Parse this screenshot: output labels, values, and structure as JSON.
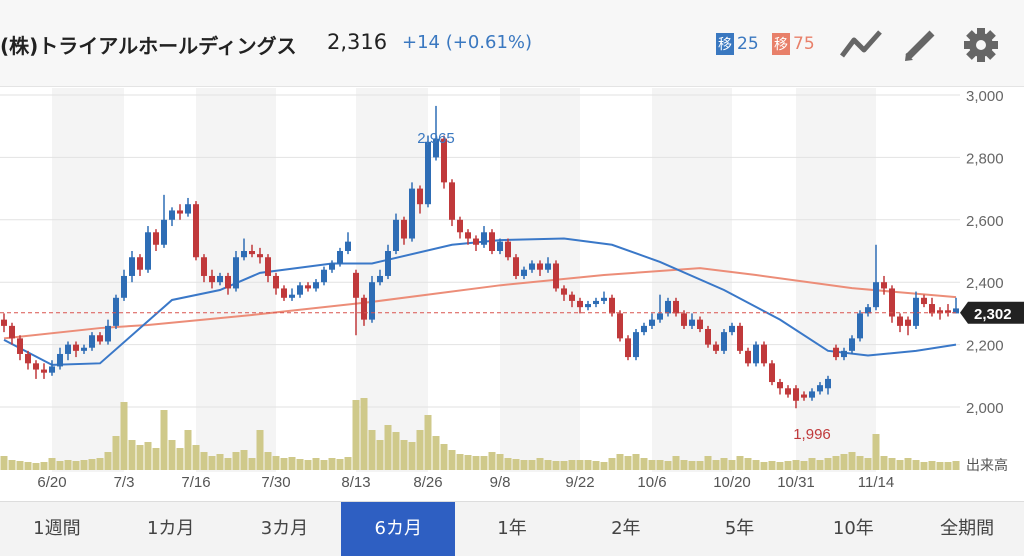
{
  "header": {
    "title": "(株)トライアルホールディングス",
    "price": "2,316",
    "change": "+14 (+0.61%)",
    "ma_short": {
      "badge": "移",
      "period": "25",
      "color": "#3a78c0"
    },
    "ma_long": {
      "badge": "移",
      "period": "75",
      "color": "#e8806a"
    },
    "icons": [
      "line-chart-icon",
      "pencil-icon",
      "gear-icon"
    ]
  },
  "tabs": [
    "1週間",
    "1カ月",
    "3カ月",
    "6カ月",
    "1年",
    "2年",
    "5年",
    "10年",
    "全期間"
  ],
  "selected_tab": 3,
  "chart_data": {
    "type": "candlestick",
    "ylim": [
      1900,
      3050
    ],
    "yticks": [
      {
        "v": 3000,
        "label": "3,000"
      },
      {
        "v": 2800,
        "label": "2,800"
      },
      {
        "v": 2600,
        "label": "2,600"
      },
      {
        "v": 2400,
        "label": "2,400"
      },
      {
        "v": 2200,
        "label": "2,200"
      },
      {
        "v": 2000,
        "label": "2,000"
      }
    ],
    "xticks": [
      {
        "i": 6,
        "label": "6/20"
      },
      {
        "i": 15,
        "label": "7/3"
      },
      {
        "i": 24,
        "label": "7/16"
      },
      {
        "i": 34,
        "label": "7/30"
      },
      {
        "i": 44,
        "label": "8/13"
      },
      {
        "i": 53,
        "label": "8/26"
      },
      {
        "i": 62,
        "label": "9/8"
      },
      {
        "i": 72,
        "label": "9/22"
      },
      {
        "i": 81,
        "label": "10/6"
      },
      {
        "i": 91,
        "label": "10/20"
      },
      {
        "i": 99,
        "label": "10/31"
      },
      {
        "i": 109,
        "label": "11/14"
      }
    ],
    "volume_label": "出来高",
    "current": {
      "value": 2302,
      "label": "2,302"
    },
    "high": {
      "i": 54,
      "value": 2965,
      "label": "2,965"
    },
    "low": {
      "i": 99,
      "value": 1996,
      "label": "1,996"
    },
    "colors": {
      "up": "#2e6db5",
      "down": "#c0393b",
      "volume": "#cfc98a",
      "ma25": "#3a78c8",
      "ma75": "#ec8d78"
    },
    "candles_ohlc": [
      [
        2280,
        2300,
        2240,
        2260
      ],
      [
        2260,
        2270,
        2200,
        2220
      ],
      [
        2220,
        2230,
        2150,
        2170
      ],
      [
        2170,
        2180,
        2120,
        2140
      ],
      [
        2140,
        2150,
        2090,
        2120
      ],
      [
        2120,
        2140,
        2090,
        2110
      ],
      [
        2110,
        2150,
        2100,
        2130
      ],
      [
        2130,
        2190,
        2120,
        2170
      ],
      [
        2170,
        2210,
        2150,
        2200
      ],
      [
        2200,
        2210,
        2160,
        2180
      ],
      [
        2180,
        2200,
        2170,
        2190
      ],
      [
        2190,
        2240,
        2180,
        2230
      ],
      [
        2230,
        2240,
        2200,
        2210
      ],
      [
        2210,
        2280,
        2200,
        2260
      ],
      [
        2260,
        2360,
        2250,
        2350
      ],
      [
        2350,
        2440,
        2340,
        2420
      ],
      [
        2420,
        2500,
        2400,
        2480
      ],
      [
        2480,
        2490,
        2420,
        2440
      ],
      [
        2440,
        2580,
        2430,
        2560
      ],
      [
        2560,
        2570,
        2500,
        2520
      ],
      [
        2520,
        2680,
        2510,
        2600
      ],
      [
        2600,
        2640,
        2580,
        2630
      ],
      [
        2630,
        2650,
        2600,
        2620
      ],
      [
        2620,
        2670,
        2610,
        2650
      ],
      [
        2650,
        2660,
        2470,
        2480
      ],
      [
        2480,
        2490,
        2400,
        2420
      ],
      [
        2420,
        2440,
        2380,
        2400
      ],
      [
        2400,
        2430,
        2390,
        2420
      ],
      [
        2420,
        2430,
        2360,
        2380
      ],
      [
        2380,
        2500,
        2370,
        2480
      ],
      [
        2480,
        2540,
        2470,
        2500
      ],
      [
        2500,
        2520,
        2480,
        2490
      ],
      [
        2490,
        2510,
        2460,
        2480
      ],
      [
        2480,
        2490,
        2400,
        2420
      ],
      [
        2420,
        2430,
        2360,
        2380
      ],
      [
        2380,
        2390,
        2340,
        2350
      ],
      [
        2350,
        2380,
        2340,
        2360
      ],
      [
        2360,
        2400,
        2350,
        2390
      ],
      [
        2390,
        2400,
        2370,
        2380
      ],
      [
        2380,
        2410,
        2370,
        2400
      ],
      [
        2400,
        2450,
        2390,
        2440
      ],
      [
        2440,
        2470,
        2430,
        2460
      ],
      [
        2460,
        2510,
        2450,
        2500
      ],
      [
        2500,
        2560,
        2490,
        2530
      ],
      [
        2430,
        2440,
        2230,
        2350
      ],
      [
        2350,
        2360,
        2260,
        2280
      ],
      [
        2280,
        2420,
        2270,
        2400
      ],
      [
        2400,
        2440,
        2390,
        2420
      ],
      [
        2420,
        2520,
        2410,
        2500
      ],
      [
        2500,
        2620,
        2490,
        2600
      ],
      [
        2600,
        2610,
        2520,
        2540
      ],
      [
        2540,
        2720,
        2530,
        2700
      ],
      [
        2700,
        2710,
        2620,
        2650
      ],
      [
        2650,
        2870,
        2640,
        2850
      ],
      [
        2800,
        2965,
        2790,
        2860
      ],
      [
        2860,
        2870,
        2700,
        2720
      ],
      [
        2720,
        2730,
        2580,
        2600
      ],
      [
        2600,
        2610,
        2540,
        2560
      ],
      [
        2560,
        2570,
        2520,
        2540
      ],
      [
        2540,
        2550,
        2500,
        2520
      ],
      [
        2520,
        2580,
        2510,
        2560
      ],
      [
        2560,
        2570,
        2490,
        2500
      ],
      [
        2500,
        2540,
        2490,
        2530
      ],
      [
        2530,
        2540,
        2470,
        2480
      ],
      [
        2480,
        2490,
        2410,
        2420
      ],
      [
        2420,
        2450,
        2410,
        2440
      ],
      [
        2440,
        2470,
        2430,
        2460
      ],
      [
        2460,
        2470,
        2420,
        2440
      ],
      [
        2440,
        2480,
        2430,
        2460
      ],
      [
        2460,
        2470,
        2370,
        2380
      ],
      [
        2380,
        2390,
        2340,
        2360
      ],
      [
        2360,
        2370,
        2320,
        2340
      ],
      [
        2340,
        2350,
        2300,
        2320
      ],
      [
        2320,
        2340,
        2310,
        2330
      ],
      [
        2330,
        2350,
        2320,
        2340
      ],
      [
        2340,
        2370,
        2330,
        2350
      ],
      [
        2350,
        2360,
        2290,
        2300
      ],
      [
        2300,
        2310,
        2210,
        2220
      ],
      [
        2220,
        2230,
        2150,
        2160
      ],
      [
        2160,
        2250,
        2150,
        2240
      ],
      [
        2240,
        2270,
        2230,
        2260
      ],
      [
        2260,
        2300,
        2250,
        2280
      ],
      [
        2280,
        2360,
        2270,
        2300
      ],
      [
        2300,
        2350,
        2290,
        2340
      ],
      [
        2340,
        2350,
        2290,
        2300
      ],
      [
        2300,
        2310,
        2250,
        2260
      ],
      [
        2260,
        2300,
        2250,
        2280
      ],
      [
        2280,
        2290,
        2240,
        2250
      ],
      [
        2250,
        2260,
        2190,
        2200
      ],
      [
        2200,
        2210,
        2170,
        2180
      ],
      [
        2180,
        2250,
        2170,
        2240
      ],
      [
        2240,
        2270,
        2230,
        2260
      ],
      [
        2260,
        2270,
        2170,
        2180
      ],
      [
        2180,
        2190,
        2130,
        2140
      ],
      [
        2140,
        2210,
        2130,
        2200
      ],
      [
        2200,
        2210,
        2130,
        2140
      ],
      [
        2140,
        2150,
        2070,
        2080
      ],
      [
        2080,
        2090,
        2040,
        2060
      ],
      [
        2060,
        2070,
        2030,
        2040
      ],
      [
        2060,
        2070,
        1996,
        2020
      ],
      [
        2040,
        2050,
        2020,
        2030
      ],
      [
        2030,
        2060,
        2020,
        2050
      ],
      [
        2050,
        2080,
        2040,
        2070
      ],
      [
        2060,
        2100,
        2040,
        2090
      ],
      [
        2190,
        2200,
        2150,
        2160
      ],
      [
        2160,
        2190,
        2150,
        2180
      ],
      [
        2180,
        2230,
        2170,
        2220
      ],
      [
        2220,
        2310,
        2210,
        2300
      ],
      [
        2300,
        2330,
        2290,
        2320
      ],
      [
        2320,
        2520,
        2310,
        2400
      ],
      [
        2400,
        2420,
        2360,
        2380
      ],
      [
        2380,
        2390,
        2270,
        2290
      ],
      [
        2290,
        2300,
        2240,
        2260
      ],
      [
        2280,
        2290,
        2230,
        2260
      ],
      [
        2260,
        2370,
        2250,
        2350
      ],
      [
        2350,
        2360,
        2320,
        2330
      ],
      [
        2330,
        2350,
        2290,
        2300
      ],
      [
        2310,
        2320,
        2280,
        2300
      ],
      [
        2310,
        2330,
        2290,
        2302
      ],
      [
        2300,
        2350,
        2300,
        2316
      ]
    ],
    "volume": [
      14,
      10,
      9,
      8,
      7,
      8,
      12,
      9,
      10,
      9,
      10,
      11,
      12,
      18,
      34,
      68,
      30,
      25,
      28,
      22,
      60,
      30,
      22,
      40,
      25,
      18,
      14,
      16,
      12,
      18,
      20,
      12,
      40,
      18,
      14,
      12,
      13,
      11,
      10,
      12,
      10,
      12,
      11,
      13,
      70,
      72,
      40,
      30,
      45,
      38,
      30,
      28,
      40,
      55,
      34,
      26,
      20,
      16,
      15,
      14,
      14,
      18,
      16,
      12,
      11,
      10,
      10,
      12,
      10,
      9,
      9,
      10,
      10,
      10,
      9,
      8,
      12,
      16,
      14,
      16,
      12,
      10,
      10,
      9,
      14,
      10,
      9,
      9,
      14,
      10,
      12,
      10,
      14,
      12,
      10,
      8,
      9,
      8,
      9,
      10,
      9,
      12,
      10,
      12,
      14,
      16,
      18,
      14,
      12,
      36,
      14,
      12,
      10,
      12,
      10,
      8,
      9,
      8,
      8,
      9
    ],
    "ma25": [
      [
        0,
        2215
      ],
      [
        6,
        2135
      ],
      [
        12,
        2140
      ],
      [
        21,
        2343
      ],
      [
        27,
        2375
      ],
      [
        32,
        2430
      ],
      [
        41,
        2460
      ],
      [
        46,
        2460
      ],
      [
        56,
        2520
      ],
      [
        62,
        2535
      ],
      [
        70,
        2540
      ],
      [
        76,
        2520
      ],
      [
        82,
        2465
      ],
      [
        90,
        2375
      ],
      [
        97,
        2280
      ],
      [
        103,
        2180
      ],
      [
        108,
        2165
      ],
      [
        114,
        2180
      ],
      [
        119,
        2200
      ]
    ],
    "ma75": [
      [
        0,
        2220
      ],
      [
        12,
        2253
      ],
      [
        18,
        2263
      ],
      [
        31,
        2295
      ],
      [
        46,
        2337
      ],
      [
        62,
        2390
      ],
      [
        75,
        2423
      ],
      [
        87,
        2445
      ],
      [
        94,
        2423
      ],
      [
        106,
        2381
      ],
      [
        119,
        2352
      ]
    ]
  }
}
